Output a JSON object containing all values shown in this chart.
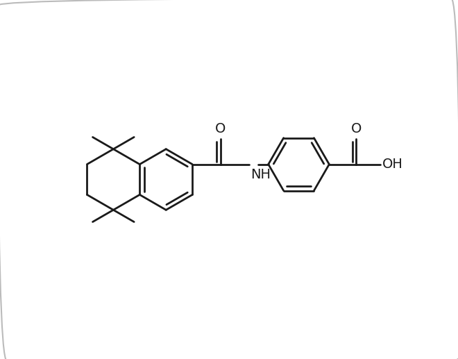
{
  "background_color": "#ffffff",
  "line_color": "#1a1a1a",
  "line_width": 2.0,
  "font_size": 14,
  "figsize": [
    6.6,
    5.17
  ],
  "dpi": 100,
  "xlim": [
    -1.0,
    9.5
  ],
  "ylim": [
    -3.2,
    3.2
  ]
}
